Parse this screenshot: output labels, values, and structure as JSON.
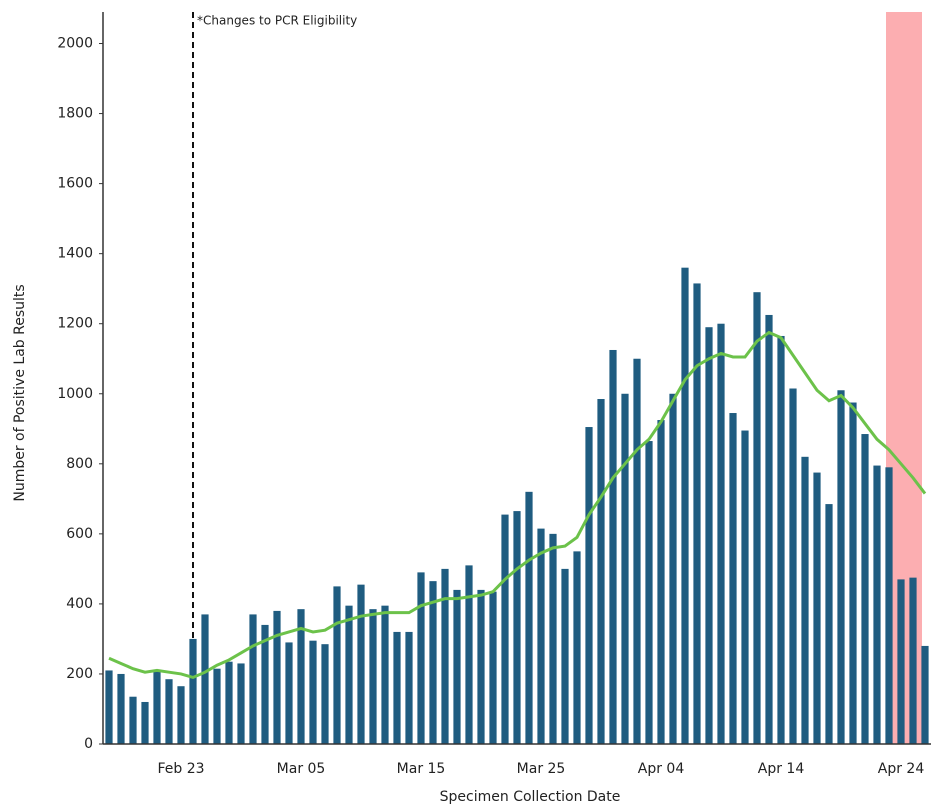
{
  "chart_data": {
    "type": "bar-line",
    "annotation": "*Changes to PCR Eligibility",
    "y_label": "Number of Positive Lab Results",
    "x_label": "Specimen Collection Date",
    "categories": [
      null,
      null,
      null,
      null,
      null,
      null,
      "Feb 23",
      null,
      null,
      null,
      null,
      null,
      null,
      null,
      null,
      null,
      "Mar 05",
      null,
      null,
      null,
      null,
      null,
      null,
      null,
      null,
      null,
      "Mar 15",
      null,
      null,
      null,
      null,
      null,
      null,
      null,
      null,
      null,
      "Mar 25",
      null,
      null,
      null,
      null,
      null,
      null,
      null,
      null,
      null,
      "Apr 04",
      null,
      null,
      null,
      null,
      null,
      null,
      null,
      null,
      null,
      "Apr 14",
      null,
      null,
      null,
      null,
      null,
      null,
      null,
      null,
      null,
      "Apr 24",
      null,
      null
    ],
    "series": [
      {
        "type": "bar",
        "color": "#1f5c80",
        "values": [
          210,
          200,
          135,
          120,
          210,
          185,
          165,
          300,
          370,
          215,
          235,
          230,
          370,
          340,
          380,
          290,
          385,
          295,
          285,
          450,
          395,
          455,
          385,
          395,
          320,
          320,
          490,
          465,
          500,
          440,
          510,
          440,
          435,
          655,
          665,
          720,
          615,
          600,
          500,
          550,
          905,
          985,
          1125,
          1000,
          1100,
          865,
          925,
          1000,
          1360,
          1315,
          1190,
          1200,
          945,
          895,
          1290,
          1225,
          1165,
          1015,
          820,
          775,
          685,
          1010,
          975,
          885,
          795,
          790,
          470,
          475,
          280
        ]
      },
      {
        "type": "line",
        "color": "#6cc24a",
        "values": [
          245,
          230,
          215,
          205,
          210,
          205,
          200,
          190,
          205,
          225,
          240,
          260,
          280,
          295,
          310,
          320,
          330,
          320,
          325,
          345,
          355,
          365,
          370,
          375,
          375,
          375,
          395,
          405,
          415,
          415,
          420,
          425,
          435,
          470,
          500,
          525,
          545,
          560,
          565,
          590,
          655,
          705,
          760,
          800,
          840,
          870,
          920,
          980,
          1040,
          1080,
          1100,
          1115,
          1105,
          1105,
          1150,
          1175,
          1160,
          1110,
          1060,
          1010,
          980,
          995,
          960,
          915,
          870,
          840,
          800,
          760,
          715
        ]
      }
    ],
    "ylim": [
      0,
      2090
    ],
    "yticks": [
      0,
      200,
      400,
      600,
      800,
      1000,
      1200,
      1400,
      1600,
      1800,
      2000
    ]
  }
}
